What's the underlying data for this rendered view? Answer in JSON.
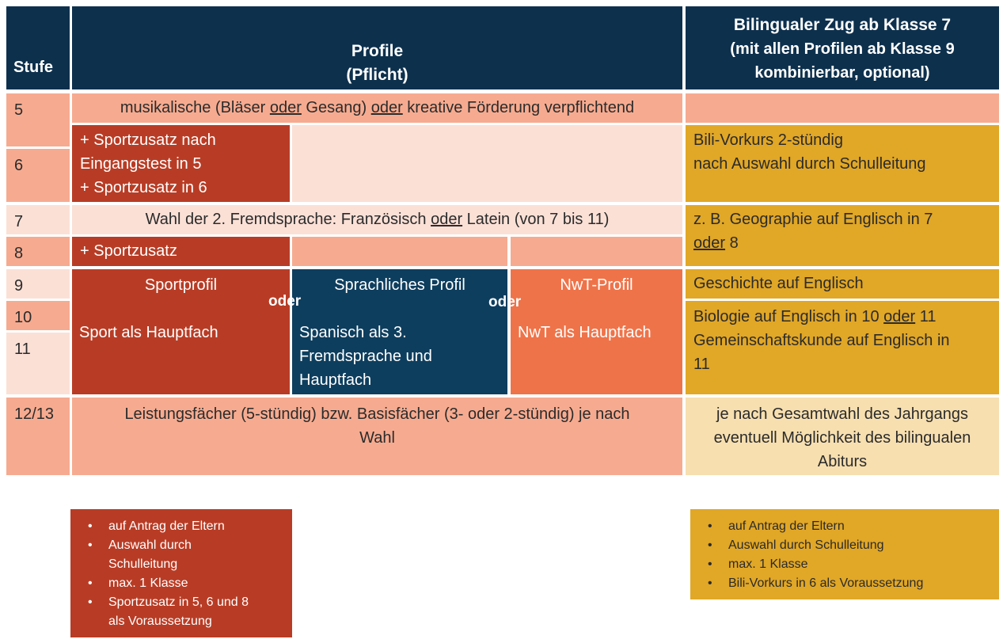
{
  "colors": {
    "header": "#0d304d",
    "light_salmon": "#f6ab90",
    "pale_salmon": "#fbe0d6",
    "dark_red": "#b83c25",
    "navy_blue": "#0e3e5e",
    "orange": "#ef7349",
    "mustard": "#e1a726",
    "pale_yellow": "#f7dfb0"
  },
  "header": {
    "stufe": "Stufe",
    "profile_line1": "Profile",
    "profile_line2": "(Pflicht)",
    "bili_line1": "Bilingualer Zug ab Klasse 7",
    "bili_line2": "(mit allen Profilen ab Klasse 9",
    "bili_line3": "kombinierbar, optional)"
  },
  "stufen": {
    "s5": "5",
    "s6": "6",
    "s7": "7",
    "s8": "8",
    "s9": "9",
    "s10": "10",
    "s11": "11",
    "s1213": "12/13"
  },
  "row5": {
    "part1": "musikalische (Bläser ",
    "oder1": "oder",
    "part2": " Gesang) ",
    "oder2": "oder",
    "part3": " kreative Förderung verpflichtend"
  },
  "row6": {
    "sport_line1": "+ Sportzusatz nach",
    "sport_line2": "Eingangstest in 5",
    "sport_line3": "+ Sportzusatz in 6",
    "bili_line1": "Bili-Vorkurs 2-stündig",
    "bili_line2": "nach Auswahl durch Schulleitung"
  },
  "row7": {
    "part1": "Wahl der 2. Fremdsprache: Französisch ",
    "oder": "oder",
    "part2": " Latein (von 7 bis 11)",
    "bili_part1": "z. B. Geographie auf Englisch in 7",
    "bili_oder": "oder",
    "bili_part2": " 8"
  },
  "row8": {
    "sport": "+ Sportzusatz"
  },
  "profiles": {
    "sport_title": "Sportprofil",
    "sport_text": "Sport als Hauptfach",
    "sprach_title": "Sprachliches Profil",
    "sprach_line1": "Spanisch als 3.",
    "sprach_line2": "Fremdsprache und",
    "sprach_line3": "Hauptfach",
    "nwt_title": "NwT-Profil",
    "nwt_text": "NwT als Hauptfach",
    "oder": "oder"
  },
  "bili_9": "Geschichte auf Englisch",
  "bili_10": {
    "part1": "Biologie auf Englisch in 10 ",
    "oder": "oder",
    "part2": " 11",
    "line2": "Gemeinschaftskunde auf Englisch in",
    "line3": "11"
  },
  "row1213": {
    "line1": "Leistungsfächer (5-stündig) bzw. Basisfächer (3- oder 2-stündig) je nach",
    "line2": "Wahl",
    "bili_line1": "je nach Gesamtwahl des Jahrgangs",
    "bili_line2": "eventuell Möglichkeit des bilingualen",
    "bili_line3": "Abiturs"
  },
  "note_sport": [
    "auf Antrag der Eltern",
    "Auswahl durch",
    "Schulleitung",
    "max. 1 Klasse",
    "Sportzusatz in 5, 6 und 8",
    "als Voraussetzung"
  ],
  "note_bili": [
    "auf Antrag der Eltern",
    "Auswahl durch Schulleitung",
    "max. 1 Klasse",
    "Bili-Vorkurs in 6 als Voraussetzung"
  ]
}
